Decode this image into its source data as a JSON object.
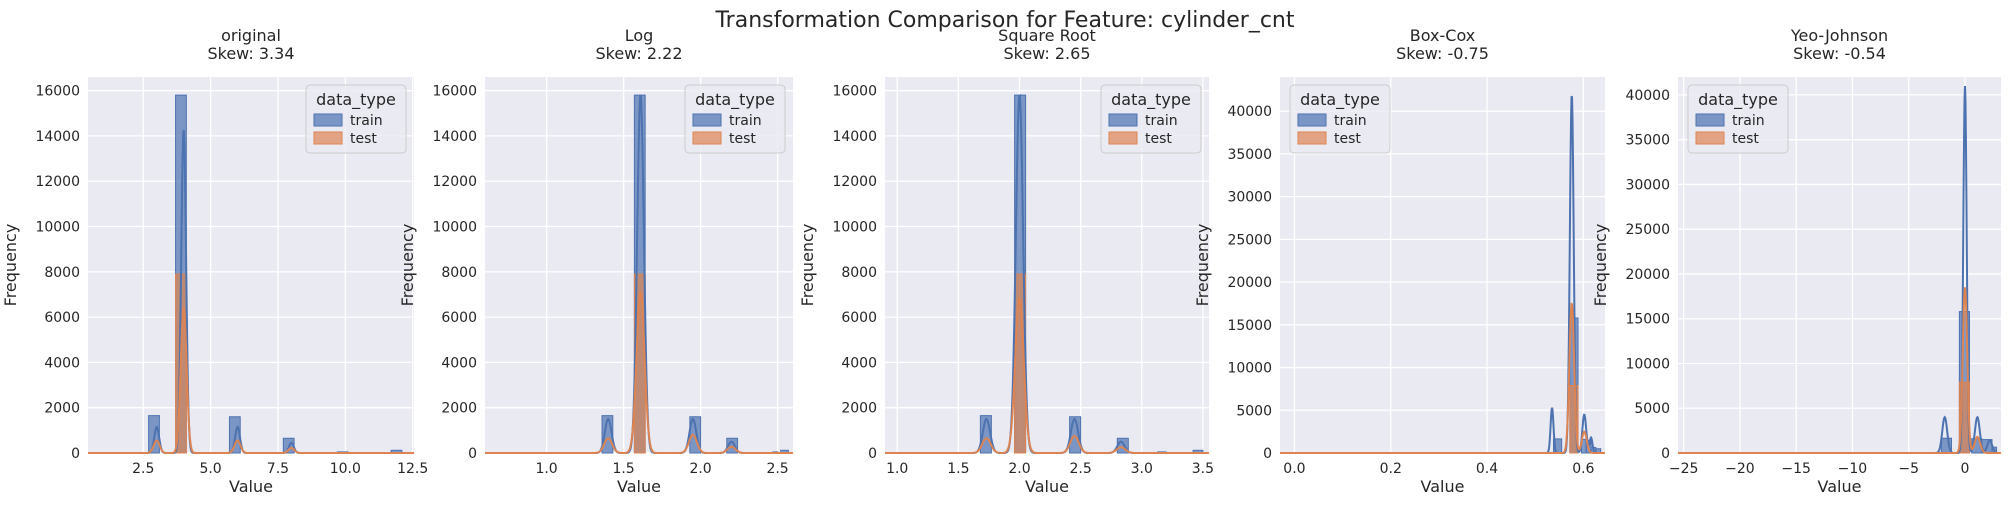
{
  "figure": {
    "title": "Transformation Comparison for Feature: cylinder_cnt"
  },
  "colors": {
    "train": "#4C72B0",
    "test": "#DD8452",
    "panel_bg": "#EAEAF2",
    "grid": "#FFFFFF"
  },
  "chart_data": [
    {
      "type": "histogram",
      "title": "original",
      "subtitle": "Skew: 3.34",
      "xlabel": "Value",
      "ylabel": "Frequency",
      "xlim": [
        0.45,
        12.55
      ],
      "ylim": [
        0,
        16600
      ],
      "xticks": [
        2.5,
        5.0,
        7.5,
        10.0,
        12.5
      ],
      "xtick_labels": [
        "2.5",
        "5.0",
        "7.5",
        "10.0",
        "12.5"
      ],
      "yticks": [
        0,
        2000,
        4000,
        6000,
        8000,
        10000,
        12000,
        14000,
        16000
      ],
      "legend": {
        "title": "data_type",
        "placement": "top-right",
        "entries": [
          "train",
          "test"
        ]
      },
      "series": [
        {
          "name": "train",
          "bars": [
            [
              2.7,
              3.1,
              1650
            ],
            [
              3.7,
              4.1,
              15800
            ],
            [
              5.7,
              6.1,
              1600
            ],
            [
              7.7,
              8.1,
              650
            ],
            [
              9.7,
              10.1,
              50
            ],
            [
              11.7,
              12.1,
              120
            ]
          ],
          "kde_peaks": [
            [
              3.0,
              1150,
              0.09
            ],
            [
              4.0,
              14300,
              0.09
            ],
            [
              6.0,
              1150,
              0.09
            ],
            [
              8.0,
              450,
              0.09
            ]
          ]
        },
        {
          "name": "test",
          "bars": [
            [
              3.7,
              4.1,
              7900
            ]
          ],
          "kde_peaks": [
            [
              3.0,
              550,
              0.11
            ],
            [
              4.0,
              6400,
              0.11
            ],
            [
              6.0,
              550,
              0.11
            ],
            [
              8.0,
              220,
              0.11
            ]
          ]
        }
      ]
    },
    {
      "type": "histogram",
      "title": "Log",
      "subtitle": "Skew: 2.22",
      "xlabel": "Value",
      "ylabel": "Frequency",
      "xlim": [
        0.6,
        2.6
      ],
      "ylim": [
        0,
        16600
      ],
      "xticks": [
        1.0,
        1.5,
        2.0,
        2.5
      ],
      "xtick_labels": [
        "1.0",
        "1.5",
        "2.0",
        "2.5"
      ],
      "yticks": [
        0,
        2000,
        4000,
        6000,
        8000,
        10000,
        12000,
        14000,
        16000
      ],
      "legend": {
        "title": "data_type",
        "placement": "top-right",
        "entries": [
          "train",
          "test"
        ]
      },
      "series": [
        {
          "name": "train",
          "bars": [
            [
              1.36,
              1.43,
              1650
            ],
            [
              1.57,
              1.64,
              15800
            ],
            [
              1.93,
              2.0,
              1600
            ],
            [
              2.17,
              2.24,
              650
            ],
            [
              2.47,
              2.5,
              50
            ],
            [
              2.52,
              2.57,
              120
            ]
          ],
          "kde_peaks": [
            [
              1.4,
              1500,
              0.022
            ],
            [
              1.61,
              15800,
              0.022
            ],
            [
              1.95,
              1500,
              0.022
            ],
            [
              2.2,
              500,
              0.022
            ]
          ]
        },
        {
          "name": "test",
          "bars": [
            [
              1.57,
              1.64,
              7900
            ]
          ],
          "kde_peaks": [
            [
              1.4,
              650,
              0.026
            ],
            [
              1.61,
              7100,
              0.026
            ],
            [
              1.95,
              800,
              0.026
            ],
            [
              2.2,
              280,
              0.026
            ]
          ]
        }
      ]
    },
    {
      "type": "histogram",
      "title": "Square Root",
      "subtitle": "Skew: 2.65",
      "xlabel": "Value",
      "ylabel": "Frequency",
      "xlim": [
        0.9,
        3.55
      ],
      "ylim": [
        0,
        16600
      ],
      "xticks": [
        1.0,
        1.5,
        2.0,
        2.5,
        3.0,
        3.5
      ],
      "xtick_labels": [
        "1.0",
        "1.5",
        "2.0",
        "2.5",
        "3.0",
        "3.5"
      ],
      "yticks": [
        0,
        2000,
        4000,
        6000,
        8000,
        10000,
        12000,
        14000,
        16000
      ],
      "legend": {
        "title": "data_type",
        "placement": "top-right",
        "entries": [
          "train",
          "test"
        ]
      },
      "series": [
        {
          "name": "train",
          "bars": [
            [
              1.68,
              1.77,
              1650
            ],
            [
              1.96,
              2.05,
              15800
            ],
            [
              2.41,
              2.5,
              1600
            ],
            [
              2.8,
              2.89,
              650
            ],
            [
              3.13,
              3.2,
              50
            ],
            [
              3.42,
              3.5,
              120
            ]
          ],
          "kde_peaks": [
            [
              1.73,
              1500,
              0.03
            ],
            [
              2.0,
              15800,
              0.03
            ],
            [
              2.45,
              1500,
              0.03
            ],
            [
              2.83,
              500,
              0.03
            ]
          ]
        },
        {
          "name": "test",
          "bars": [
            [
              1.96,
              2.05,
              7900
            ]
          ],
          "kde_peaks": [
            [
              1.73,
              650,
              0.035
            ],
            [
              2.0,
              6800,
              0.035
            ],
            [
              2.45,
              750,
              0.035
            ],
            [
              2.83,
              260,
              0.035
            ]
          ]
        }
      ]
    },
    {
      "type": "histogram",
      "title": "Box-Cox",
      "subtitle": "Skew: -0.75",
      "xlabel": "Value",
      "ylabel": "Frequency",
      "xlim": [
        -0.03,
        0.645
      ],
      "ylim": [
        0,
        44000
      ],
      "xticks": [
        0.0,
        0.2,
        0.4,
        0.6
      ],
      "xtick_labels": [
        "0.0",
        "0.2",
        "0.4",
        "0.6"
      ],
      "yticks": [
        0,
        5000,
        10000,
        15000,
        20000,
        25000,
        30000,
        35000,
        40000
      ],
      "legend": {
        "title": "data_type",
        "placement": "top-left",
        "entries": [
          "train",
          "test"
        ]
      },
      "series": [
        {
          "name": "train",
          "bars": [
            [
              0.538,
              0.555,
              1650
            ],
            [
              0.572,
              0.589,
              15800
            ],
            [
              0.596,
              0.606,
              1600
            ],
            [
              0.606,
              0.616,
              1500
            ],
            [
              0.616,
              0.626,
              650
            ],
            [
              0.626,
              0.636,
              500
            ]
          ],
          "kde_peaks": [
            [
              0.535,
              5300,
              0.003
            ],
            [
              0.576,
              42000,
              0.004
            ],
            [
              0.602,
              4500,
              0.004
            ],
            [
              0.616,
              1800,
              0.003
            ]
          ]
        },
        {
          "name": "test",
          "bars": [
            [
              0.572,
              0.589,
              7900
            ]
          ],
          "kde_peaks": [
            [
              0.576,
              17500,
              0.005
            ],
            [
              0.602,
              2500,
              0.005
            ]
          ]
        }
      ]
    },
    {
      "type": "histogram",
      "title": "Yeo-Johnson",
      "subtitle": "Skew: -0.54",
      "xlabel": "Value",
      "ylabel": "Frequency",
      "xlim": [
        -25.5,
        3.2
      ],
      "ylim": [
        0,
        42000
      ],
      "xticks": [
        -25,
        -20,
        -15,
        -10,
        -5,
        0
      ],
      "xtick_labels": [
        "−25",
        "−20",
        "−15",
        "−10",
        "−5",
        "0"
      ],
      "yticks": [
        0,
        5000,
        10000,
        15000,
        20000,
        25000,
        30000,
        35000,
        40000
      ],
      "legend": {
        "title": "data_type",
        "placement": "top-left",
        "entries": [
          "train",
          "test"
        ]
      },
      "series": [
        {
          "name": "train",
          "bars": [
            [
              -2.1,
              -1.2,
              1650
            ],
            [
              -0.5,
              0.4,
              15800
            ],
            [
              0.6,
              1.5,
              1600
            ],
            [
              1.5,
              2.4,
              1500
            ],
            [
              2.4,
              2.8,
              650
            ]
          ],
          "kde_peaks": [
            [
              -1.8,
              4000,
              0.22
            ],
            [
              0.0,
              41000,
              0.15
            ],
            [
              1.1,
              4000,
              0.22
            ],
            [
              2.2,
              1400,
              0.22
            ]
          ]
        },
        {
          "name": "test",
          "bars": [
            [
              -0.5,
              0.4,
              7900
            ]
          ],
          "kde_peaks": [
            [
              0.0,
              18500,
              0.2
            ],
            [
              1.1,
              1800,
              0.25
            ]
          ]
        }
      ]
    }
  ]
}
